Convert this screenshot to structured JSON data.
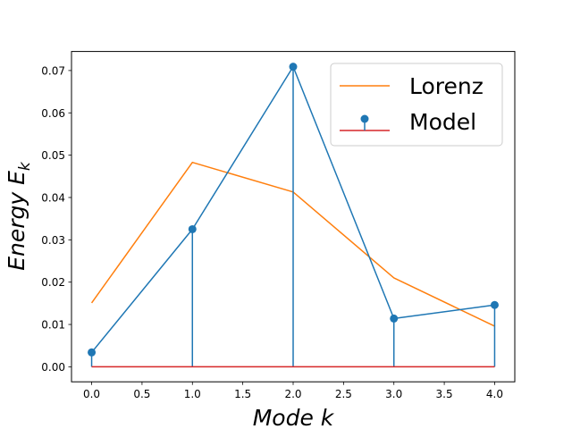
{
  "chart_data": {
    "type": "line",
    "title": "",
    "xlabel": "Mode k",
    "ylabel": "Energy E_k",
    "xlabel_parts": {
      "text": "Mode ",
      "var": "k"
    },
    "ylabel_parts": {
      "text": "Energy ",
      "var": "E",
      "sub": "k"
    },
    "xlim": [
      -0.2,
      4.2
    ],
    "ylim": [
      -0.00355,
      0.0745
    ],
    "xticks": [
      0.0,
      0.5,
      1.0,
      1.5,
      2.0,
      2.5,
      3.0,
      3.5,
      4.0
    ],
    "xtick_labels": [
      "0.0",
      "0.5",
      "1.0",
      "1.5",
      "2.0",
      "2.5",
      "3.0",
      "3.5",
      "4.0"
    ],
    "yticks": [
      0.0,
      0.01,
      0.02,
      0.03,
      0.04,
      0.05,
      0.06,
      0.07
    ],
    "ytick_labels": [
      "0.00",
      "0.01",
      "0.02",
      "0.03",
      "0.04",
      "0.05",
      "0.06",
      "0.07"
    ],
    "grid": false,
    "legend_position": "top-right",
    "series": [
      {
        "name": "Lorenz",
        "kind": "line",
        "color": "#ff7f0e",
        "x": [
          0,
          1,
          2,
          3,
          4
        ],
        "values": [
          0.0151,
          0.0483,
          0.0413,
          0.021,
          0.0096
        ]
      },
      {
        "name": "Model",
        "kind": "stem",
        "color": "#1f77b4",
        "baseline_color": "#d62728",
        "x": [
          0,
          1,
          2,
          3,
          4
        ],
        "values": [
          0.0034,
          0.0325,
          0.0709,
          0.0114,
          0.0146
        ]
      }
    ]
  }
}
